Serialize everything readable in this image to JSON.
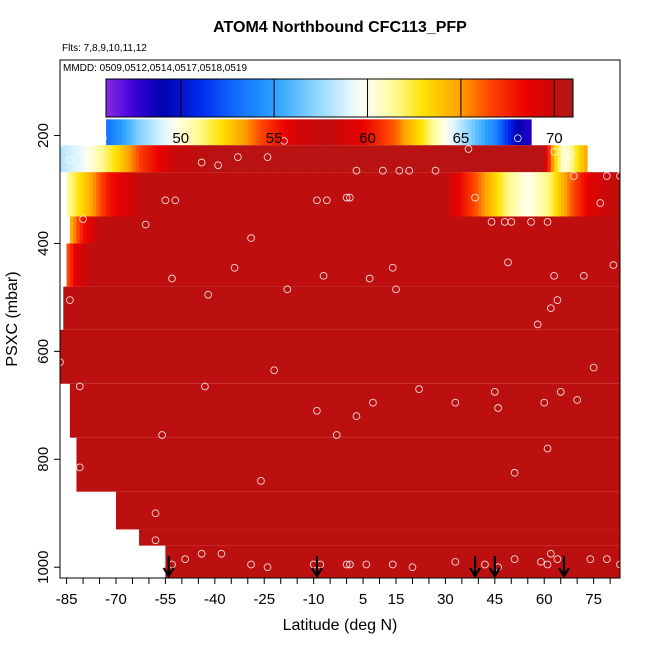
{
  "chart_data": {
    "type": "heatmap",
    "title": "ATOM4 Northbound CFC113_PFP",
    "flights_label": "Flts: 7,8,9,10,11,12",
    "dates_label": "MMDD: 0509,0512,0514,0517,0518,0519",
    "xlabel": "Latitude (deg N)",
    "ylabel": "PSXC (mbar)",
    "x_ticks": [
      "-85",
      "-70",
      "-55",
      "-40",
      "-25",
      "-10",
      "5",
      "15",
      "30",
      "45",
      "60",
      "75"
    ],
    "x_tick_values": [
      -85,
      -70,
      -55,
      -40,
      -25,
      -10,
      5,
      15,
      30,
      45,
      60,
      75
    ],
    "y_ticks": [
      "200",
      "400",
      "600",
      "800",
      "1000"
    ],
    "y_tick_values": [
      200,
      400,
      600,
      800,
      1000
    ],
    "xlim": [
      -87,
      83
    ],
    "ylim": [
      1020,
      60
    ],
    "colorbar": {
      "ticks": [
        "50",
        "55",
        "60",
        "65",
        "70"
      ],
      "tick_values": [
        50,
        55,
        60,
        65,
        70
      ],
      "range": [
        46,
        71
      ]
    },
    "background_value": 70.4,
    "bands": [
      {
        "p_top": 170,
        "p_bot": 218,
        "lat_min": -73,
        "lat_max": 56,
        "profile": [
          [
            -73,
            53
          ],
          [
            -63,
            57
          ],
          [
            -50,
            60.5
          ],
          [
            -38,
            63
          ],
          [
            -26,
            66.5
          ],
          [
            -15,
            69.5
          ],
          [
            -5,
            70.2
          ],
          [
            5,
            68.5
          ],
          [
            15,
            66
          ],
          [
            25,
            62
          ],
          [
            35,
            58
          ],
          [
            45,
            54
          ],
          [
            52,
            49
          ],
          [
            56,
            48
          ]
        ]
      },
      {
        "p_top": 218,
        "p_bot": 268,
        "lat_min": -87,
        "lat_max": 73,
        "profile": [
          [
            -87,
            58
          ],
          [
            -80,
            59.5
          ],
          [
            -70,
            63
          ],
          [
            -62,
            67
          ],
          [
            -52,
            70
          ],
          [
            -40,
            70.5
          ],
          [
            60,
            70.5
          ],
          [
            63,
            64
          ],
          [
            66,
            60
          ],
          [
            69,
            62
          ],
          [
            73,
            65
          ]
        ]
      },
      {
        "p_top": 268,
        "p_bot": 350,
        "lat_min": -85,
        "lat_max": 83,
        "profile": [
          [
            -85,
            61
          ],
          [
            -78,
            64.5
          ],
          [
            -72,
            68
          ],
          [
            -62,
            70.3
          ],
          [
            30,
            70.3
          ],
          [
            40,
            66
          ],
          [
            48,
            62
          ],
          [
            55,
            60
          ],
          [
            62,
            62
          ],
          [
            68,
            66
          ],
          [
            74,
            69
          ],
          [
            83,
            70.5
          ]
        ]
      },
      {
        "p_top": 350,
        "p_bot": 400,
        "lat_min": -84,
        "lat_max": 83,
        "profile": [
          [
            -84,
            64
          ],
          [
            -80,
            68
          ],
          [
            -75,
            70.3
          ],
          [
            83,
            70.3
          ]
        ]
      },
      {
        "p_top": 400,
        "p_bot": 480,
        "lat_min": -85,
        "lat_max": 83,
        "profile": [
          [
            -85,
            66
          ],
          [
            -82,
            69
          ],
          [
            -78,
            70.3
          ],
          [
            83,
            70.3
          ]
        ]
      }
    ],
    "coverage": [
      {
        "p_top": 480,
        "p_bot": 560,
        "lat_min": -86,
        "lat_max": 83
      },
      {
        "p_top": 560,
        "p_bot": 660,
        "lat_min": -87,
        "lat_max": 83
      },
      {
        "p_top": 660,
        "p_bot": 760,
        "lat_min": -84,
        "lat_max": 83
      },
      {
        "p_top": 760,
        "p_bot": 860,
        "lat_min": -82,
        "lat_max": 83
      },
      {
        "p_top": 860,
        "p_bot": 930,
        "lat_min": -70,
        "lat_max": 83
      },
      {
        "p_top": 930,
        "p_bot": 960,
        "lat_min": -63,
        "lat_max": 83
      },
      {
        "p_top": 960,
        "p_bot": 1020,
        "lat_min": -55,
        "lat_max": 83
      }
    ],
    "flight_arrows_lat": [
      -54,
      -9,
      39,
      45,
      66
    ],
    "samples": [
      [
        -87,
        215
      ],
      [
        -74,
        205
      ],
      [
        -84,
        245
      ],
      [
        -55,
        320
      ],
      [
        -52,
        320
      ],
      [
        -80,
        355
      ],
      [
        -61,
        365
      ],
      [
        -53,
        465
      ],
      [
        -34,
        445
      ],
      [
        -29,
        390
      ],
      [
        -18,
        485
      ],
      [
        -84,
        505
      ],
      [
        -81,
        665
      ],
      [
        -87,
        620
      ],
      [
        -81,
        815
      ],
      [
        -56,
        755
      ],
      [
        -43,
        665
      ],
      [
        -42,
        495
      ],
      [
        -39,
        255
      ],
      [
        -44,
        250
      ],
      [
        -33,
        240
      ],
      [
        -24,
        240
      ],
      [
        -19,
        210
      ],
      [
        -26,
        840
      ],
      [
        -22,
        635
      ],
      [
        -9,
        320
      ],
      [
        -6,
        320
      ],
      [
        -7,
        460
      ],
      [
        -9,
        710
      ],
      [
        -3,
        755
      ],
      [
        0,
        315
      ],
      [
        3,
        265
      ],
      [
        3,
        720
      ],
      [
        1,
        315
      ],
      [
        7,
        465
      ],
      [
        8,
        695
      ],
      [
        11,
        265
      ],
      [
        14,
        445
      ],
      [
        15,
        485
      ],
      [
        16,
        265
      ],
      [
        19,
        265
      ],
      [
        22,
        670
      ],
      [
        27,
        265
      ],
      [
        33,
        695
      ],
      [
        37,
        225
      ],
      [
        39,
        315
      ],
      [
        44,
        360
      ],
      [
        48,
        360
      ],
      [
        49,
        435
      ],
      [
        45,
        675
      ],
      [
        46,
        705
      ],
      [
        50,
        360
      ],
      [
        53,
        330
      ],
      [
        56,
        360
      ],
      [
        51,
        825
      ],
      [
        58,
        550
      ],
      [
        61,
        360
      ],
      [
        62,
        520
      ],
      [
        63,
        460
      ],
      [
        64,
        505
      ],
      [
        65,
        675
      ],
      [
        60,
        695
      ],
      [
        61,
        780
      ],
      [
        63,
        230
      ],
      [
        68,
        235
      ],
      [
        69,
        275
      ],
      [
        70,
        690
      ],
      [
        72,
        460
      ],
      [
        75,
        630
      ],
      [
        77,
        325
      ],
      [
        79,
        275
      ],
      [
        83,
        275
      ],
      [
        81,
        440
      ],
      [
        52,
        205
      ],
      [
        -58,
        900
      ],
      [
        -58,
        950
      ],
      [
        -49,
        985
      ],
      [
        -53,
        995
      ],
      [
        -44,
        975
      ],
      [
        -38,
        975
      ],
      [
        -29,
        995
      ],
      [
        -24,
        1000
      ],
      [
        -10,
        995
      ],
      [
        -8,
        995
      ],
      [
        0,
        995
      ],
      [
        1,
        995
      ],
      [
        6,
        995
      ],
      [
        14,
        995
      ],
      [
        20,
        1000
      ],
      [
        33,
        990
      ],
      [
        42,
        995
      ],
      [
        46,
        1000
      ],
      [
        51,
        985
      ],
      [
        59,
        990
      ],
      [
        61,
        995
      ],
      [
        62,
        975
      ],
      [
        64,
        985
      ],
      [
        74,
        985
      ],
      [
        79,
        985
      ],
      [
        83,
        995
      ]
    ]
  }
}
